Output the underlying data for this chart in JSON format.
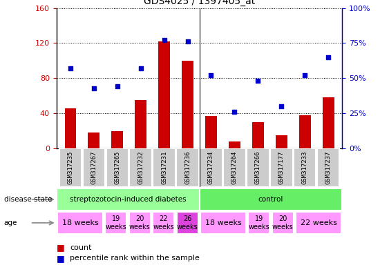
{
  "title": "GDS4025 / 1397405_at",
  "samples": [
    "GSM317235",
    "GSM317267",
    "GSM317265",
    "GSM317232",
    "GSM317231",
    "GSM317236",
    "GSM317234",
    "GSM317264",
    "GSM317266",
    "GSM317177",
    "GSM317233",
    "GSM317237"
  ],
  "counts": [
    46,
    18,
    20,
    55,
    122,
    100,
    37,
    8,
    30,
    15,
    38,
    58
  ],
  "percentiles": [
    57,
    43,
    44,
    57,
    77,
    76,
    52,
    26,
    48,
    30,
    52,
    65
  ],
  "ylim_left": [
    0,
    160
  ],
  "ylim_right": [
    0,
    100
  ],
  "yticks_left": [
    0,
    40,
    80,
    120,
    160
  ],
  "yticks_right": [
    0,
    25,
    50,
    75,
    100
  ],
  "ytick_labels_left": [
    "0",
    "40",
    "80",
    "120",
    "160"
  ],
  "ytick_labels_right": [
    "0%",
    "25%",
    "50%",
    "75%",
    "100%"
  ],
  "disease_state_groups": [
    {
      "label": "streptozotocin-induced diabetes",
      "start": 0,
      "end": 6,
      "color": "#99ff99"
    },
    {
      "label": "control",
      "start": 6,
      "end": 12,
      "color": "#66ee66"
    }
  ],
  "age_groups": [
    {
      "label": "18 weeks",
      "start": 0,
      "end": 2,
      "color": "#ff99ff",
      "fontsize": 8
    },
    {
      "label": "19\nweeks",
      "start": 2,
      "end": 3,
      "color": "#ff99ff",
      "fontsize": 7
    },
    {
      "label": "20\nweeks",
      "start": 3,
      "end": 4,
      "color": "#ff99ff",
      "fontsize": 7
    },
    {
      "label": "22\nweeks",
      "start": 4,
      "end": 5,
      "color": "#ff99ff",
      "fontsize": 7
    },
    {
      "label": "26\nweeks",
      "start": 5,
      "end": 6,
      "color": "#dd44dd",
      "fontsize": 7
    },
    {
      "label": "18 weeks",
      "start": 6,
      "end": 8,
      "color": "#ff99ff",
      "fontsize": 8
    },
    {
      "label": "19\nweeks",
      "start": 8,
      "end": 9,
      "color": "#ff99ff",
      "fontsize": 7
    },
    {
      "label": "20\nweeks",
      "start": 9,
      "end": 10,
      "color": "#ff99ff",
      "fontsize": 7
    },
    {
      "label": "22 weeks",
      "start": 10,
      "end": 12,
      "color": "#ff99ff",
      "fontsize": 8
    }
  ],
  "bar_color": "#cc0000",
  "scatter_color": "#0000cc",
  "tick_label_color_left": "#cc0000",
  "tick_label_color_right": "#0000cc",
  "legend_items": [
    {
      "label": "count",
      "color": "#cc0000"
    },
    {
      "label": "percentile rank within the sample",
      "color": "#0000cc"
    }
  ],
  "bar_width": 0.5,
  "sample_box_color": "#cccccc",
  "left_label_color": "#444444"
}
